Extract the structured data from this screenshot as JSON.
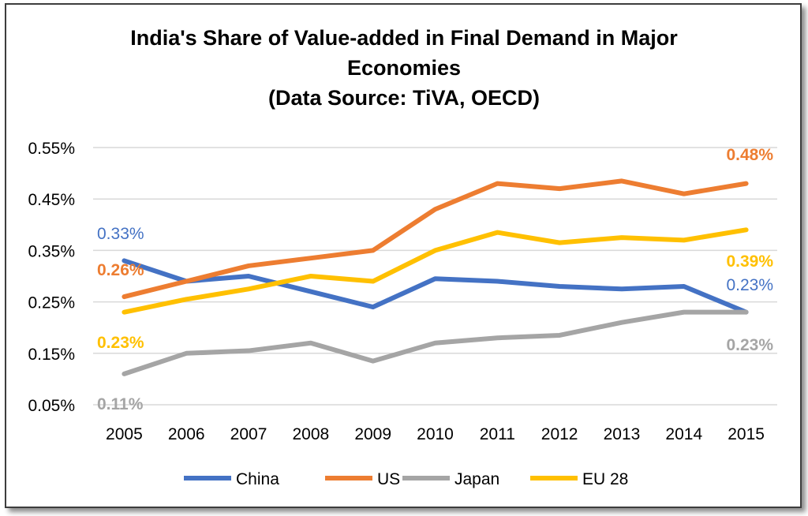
{
  "chart_data": {
    "type": "line",
    "title": [
      "India's Share of Value-added in Final Demand in Major",
      "Economies",
      "(Data Source: TiVA, OECD)"
    ],
    "x": [
      "2005",
      "2006",
      "2007",
      "2008",
      "2009",
      "2010",
      "2011",
      "2012",
      "2013",
      "2014",
      "2015"
    ],
    "ylim": [
      0.05,
      0.55
    ],
    "yticks": [
      "0.05%",
      "0.15%",
      "0.25%",
      "0.35%",
      "0.45%",
      "0.55%"
    ],
    "grid": true,
    "legend_position": "bottom",
    "series": [
      {
        "name": "China",
        "color": "#4472C4",
        "values": [
          0.33,
          0.29,
          0.3,
          0.27,
          0.24,
          0.295,
          0.29,
          0.28,
          0.275,
          0.28,
          0.23
        ],
        "start_label": "0.33%",
        "end_label": "0.23%",
        "label_bold": false
      },
      {
        "name": "US",
        "color": "#ED7D31",
        "values": [
          0.26,
          0.29,
          0.32,
          0.335,
          0.35,
          0.43,
          0.48,
          0.47,
          0.485,
          0.46,
          0.48
        ],
        "start_label": "0.26%",
        "end_label": "0.48%",
        "label_bold": true
      },
      {
        "name": "Japan",
        "color": "#A5A5A5",
        "values": [
          0.11,
          0.15,
          0.155,
          0.17,
          0.135,
          0.17,
          0.18,
          0.185,
          0.21,
          0.23,
          0.23
        ],
        "start_label": "0.11%",
        "end_label": "0.23%",
        "label_bold": true
      },
      {
        "name": "EU 28",
        "color": "#FFC000",
        "values": [
          0.23,
          0.255,
          0.275,
          0.3,
          0.29,
          0.35,
          0.385,
          0.365,
          0.375,
          0.37,
          0.39
        ],
        "start_label": "0.23%",
        "end_label": "0.39%",
        "label_bold": true
      }
    ]
  }
}
